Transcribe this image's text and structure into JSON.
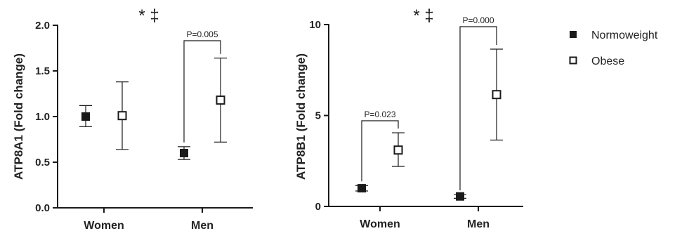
{
  "legend": {
    "items": [
      {
        "label": "Normoweight",
        "marker": "filled-square",
        "color": "#1a1a1a"
      },
      {
        "label": "Obese",
        "marker": "open-square",
        "color": "#1a1a1a"
      }
    ]
  },
  "chart_data": [
    {
      "type": "scatter",
      "title": "",
      "ylabel": "ATP8A1 (Fold change)",
      "xlabel": "",
      "categories": [
        "Women",
        "Men"
      ],
      "ylim": [
        0,
        2.0
      ],
      "yticks": [
        "0.0",
        "0.5",
        "1.0",
        "1.5",
        "2.0"
      ],
      "series": [
        {
          "name": "Normoweight",
          "values": [
            1.0,
            0.6
          ],
          "err_low": [
            0.89,
            0.53
          ],
          "err_high": [
            1.12,
            0.67
          ]
        },
        {
          "name": "Obese",
          "values": [
            1.01,
            1.18
          ],
          "err_low": [
            0.64,
            0.72
          ],
          "err_high": [
            1.38,
            1.64
          ]
        }
      ],
      "significance_label": "* ‡",
      "comparisons": [
        {
          "category": "Men",
          "label": "P=0.005"
        }
      ]
    },
    {
      "type": "scatter",
      "title": "",
      "ylabel": "ATP8B1 (Fold change)",
      "xlabel": "",
      "categories": [
        "Women",
        "Men"
      ],
      "ylim": [
        0,
        10
      ],
      "yticks": [
        "0",
        "5",
        "10"
      ],
      "series": [
        {
          "name": "Normoweight",
          "values": [
            1.0,
            0.55
          ],
          "err_low": [
            0.85,
            0.45
          ],
          "err_high": [
            1.15,
            0.65
          ]
        },
        {
          "name": "Obese",
          "values": [
            3.1,
            6.15
          ],
          "err_low": [
            2.2,
            3.65
          ],
          "err_high": [
            4.05,
            8.65
          ]
        }
      ],
      "significance_label": "* ‡",
      "comparisons": [
        {
          "category": "Women",
          "label": "P=0.023"
        },
        {
          "category": "Men",
          "label": "P=0.000"
        }
      ]
    }
  ]
}
